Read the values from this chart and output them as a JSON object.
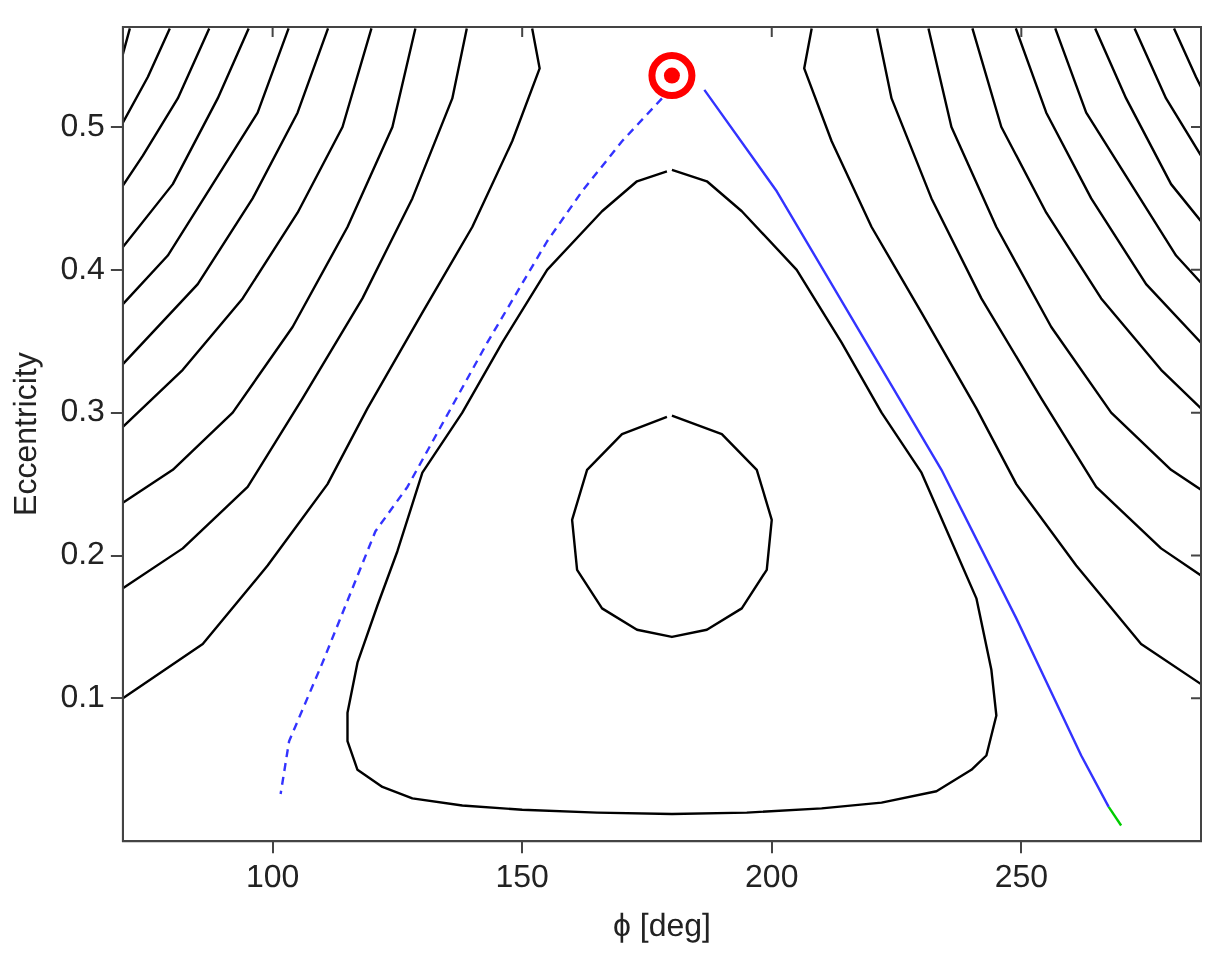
{
  "chart_data": {
    "type": "line",
    "xlabel": "ϕ [deg]",
    "ylabel": "Eccentricity",
    "xlim": [
      70,
      286
    ],
    "ylim": [
      0,
      0.57
    ],
    "xticks": [
      100,
      150,
      200,
      250
    ],
    "yticks": [
      0.1,
      0.2,
      0.3,
      0.4,
      0.5
    ],
    "grid": false,
    "legend": false,
    "marker": "none",
    "line_style": "solid",
    "series": [
      {
        "color": "#000000",
        "x": [
          71.4,
          70
        ],
        "values": [
          0.569,
          0.551
        ]
      },
      {
        "color": "#000000",
        "x": [
          79.4,
          75,
          70
        ],
        "values": [
          0.569,
          0.535,
          0.503
        ]
      },
      {
        "color": "#000000",
        "x": [
          87.3,
          81,
          74,
          70
        ],
        "values": [
          0.569,
          0.52,
          0.48,
          0.459
        ]
      },
      {
        "color": "#000000",
        "x": [
          95.2,
          89,
          80,
          70
        ],
        "values": [
          0.569,
          0.52,
          0.46,
          0.416
        ]
      },
      {
        "color": "#000000",
        "x": [
          103.2,
          97,
          88,
          79,
          70
        ],
        "values": [
          0.569,
          0.51,
          0.46,
          0.41,
          0.376
        ]
      },
      {
        "color": "#000000",
        "x": [
          111.1,
          105,
          96,
          85,
          70
        ],
        "values": [
          0.569,
          0.51,
          0.45,
          0.39,
          0.334
        ]
      },
      {
        "color": "#000000",
        "x": [
          119.8,
          114,
          105,
          94,
          82,
          70
        ],
        "values": [
          0.569,
          0.5,
          0.44,
          0.38,
          0.33,
          0.29
        ]
      },
      {
        "color": "#000000",
        "x": [
          128.6,
          124,
          115,
          104,
          92,
          80,
          70
        ],
        "values": [
          0.569,
          0.5,
          0.43,
          0.36,
          0.3,
          0.26,
          0.237
        ]
      },
      {
        "color": "#000000",
        "x": [
          138.9,
          136,
          128,
          118,
          106,
          95,
          82,
          70
        ],
        "values": [
          0.569,
          0.52,
          0.45,
          0.38,
          0.31,
          0.248,
          0.205,
          0.177
        ]
      },
      {
        "color": "#000000",
        "x": [
          152,
          153.5,
          148,
          140,
          130,
          119,
          111,
          99,
          86,
          70
        ],
        "values": [
          0.569,
          0.541,
          0.49,
          0.43,
          0.37,
          0.303,
          0.25,
          0.193,
          0.138,
          0.1
        ]
      },
      {
        "color": "#000000",
        "x": [
          280.6,
          285,
          286
        ],
        "values": [
          0.569,
          0.535,
          0.528
        ]
      },
      {
        "color": "#000000",
        "x": [
          272.7,
          279,
          286
        ],
        "values": [
          0.569,
          0.52,
          0.48
        ]
      },
      {
        "color": "#000000",
        "x": [
          264.8,
          271,
          280,
          286
        ],
        "values": [
          0.569,
          0.52,
          0.46,
          0.434
        ]
      },
      {
        "color": "#000000",
        "x": [
          256.8,
          263,
          272,
          281,
          286
        ],
        "values": [
          0.569,
          0.51,
          0.46,
          0.41,
          0.391
        ]
      },
      {
        "color": "#000000",
        "x": [
          248.9,
          255,
          264,
          275,
          286
        ],
        "values": [
          0.569,
          0.51,
          0.45,
          0.39,
          0.349
        ]
      },
      {
        "color": "#000000",
        "x": [
          240.2,
          246,
          255,
          266,
          278,
          286
        ],
        "values": [
          0.569,
          0.5,
          0.44,
          0.38,
          0.33,
          0.303
        ]
      },
      {
        "color": "#000000",
        "x": [
          231.4,
          236,
          245,
          256,
          268,
          280,
          286
        ],
        "values": [
          0.569,
          0.5,
          0.43,
          0.36,
          0.3,
          0.26,
          0.246
        ]
      },
      {
        "color": "#000000",
        "x": [
          221.1,
          224,
          232,
          242,
          254,
          265,
          278,
          286
        ],
        "values": [
          0.569,
          0.52,
          0.45,
          0.38,
          0.31,
          0.248,
          0.205,
          0.186
        ]
      },
      {
        "color": "#000000",
        "x": [
          208,
          206.5,
          212,
          220,
          230,
          241,
          249,
          261,
          274,
          286
        ],
        "values": [
          0.569,
          0.541,
          0.49,
          0.43,
          0.37,
          0.303,
          0.25,
          0.193,
          0.138,
          0.11
        ]
      },
      {
        "color": "#000000",
        "x": [
          180,
          187,
          194,
          205,
          214,
          222,
          230,
          236,
          241,
          244,
          245,
          243,
          240,
          233,
          222,
          210,
          195,
          180,
          165,
          150,
          138,
          128,
          122,
          117,
          115,
          115,
          117,
          121,
          125,
          130,
          138,
          146,
          155,
          166,
          173,
          179
        ],
        "values": [
          0.47,
          0.462,
          0.441,
          0.4,
          0.349,
          0.3,
          0.258,
          0.21,
          0.17,
          0.12,
          0.088,
          0.06,
          0.05,
          0.035,
          0.027,
          0.023,
          0.02,
          0.019,
          0.02,
          0.022,
          0.025,
          0.03,
          0.038,
          0.05,
          0.07,
          0.09,
          0.125,
          0.165,
          0.203,
          0.258,
          0.3,
          0.349,
          0.4,
          0.441,
          0.462,
          0.469
        ]
      },
      {
        "color": "#000000",
        "x": [
          180,
          190,
          197,
          200,
          199,
          194,
          187,
          180,
          173,
          166,
          161,
          160,
          163,
          170,
          179
        ],
        "values": [
          0.298,
          0.285,
          0.26,
          0.225,
          0.19,
          0.163,
          0.148,
          0.143,
          0.148,
          0.163,
          0.19,
          0.225,
          0.26,
          0.285,
          0.297
        ]
      },
      {
        "color": "#3333ff",
        "line_style": "dashed",
        "x": [
          178,
          170,
          162,
          155,
          143,
          127,
          120.6,
          110,
          103.3,
          101.6
        ],
        "values": [
          0.52,
          0.49,
          0.455,
          0.42,
          0.349,
          0.248,
          0.217,
          0.125,
          0.07,
          0.033
        ]
      },
      {
        "color": "#3333ff",
        "x": [
          186.5,
          201,
          234,
          249,
          262,
          267.5
        ],
        "values": [
          0.526,
          0.455,
          0.26,
          0.156,
          0.06,
          0.024
        ]
      },
      {
        "color": "#00cc00",
        "x": [
          267.5,
          270
        ],
        "values": [
          0.024,
          0.011
        ]
      },
      {
        "type": "scatter",
        "marker": "circle",
        "color": "#ff0000",
        "x": [
          180
        ],
        "values": [
          0.536
        ]
      }
    ]
  }
}
